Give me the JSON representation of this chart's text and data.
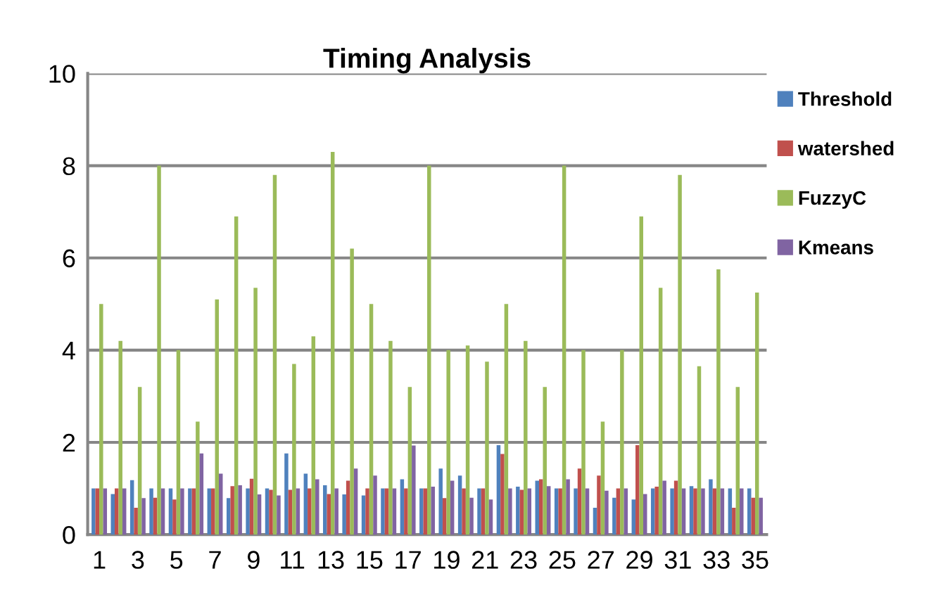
{
  "chart_data": {
    "type": "bar",
    "title": "Timing Analysis",
    "categories": [
      "1",
      null,
      "3",
      null,
      "5",
      null,
      "7",
      null,
      "9",
      null,
      "11",
      null,
      "13",
      null,
      "15",
      null,
      "17",
      null,
      "19",
      null,
      "21",
      null,
      "23",
      null,
      "25",
      null,
      "27",
      null,
      "29",
      null,
      "31",
      null,
      "33",
      null,
      "35"
    ],
    "series": [
      {
        "name": "Threshold",
        "color": "#4f81bd",
        "values": [
          1.0,
          0.88,
          1.18,
          1.0,
          1.0,
          1.0,
          1.0,
          0.79,
          1.0,
          1.0,
          1.76,
          1.32,
          1.07,
          0.87,
          0.85,
          1.0,
          1.2,
          1.0,
          1.43,
          1.28,
          1.0,
          1.94,
          1.04,
          1.17,
          1.0,
          1.0,
          0.58,
          0.8,
          0.76,
          1.0,
          1.0,
          1.05,
          1.2,
          1.0,
          1.0
        ]
      },
      {
        "name": "watershed",
        "color": "#c0504d",
        "values": [
          1.0,
          1.0,
          0.58,
          0.8,
          0.76,
          1.0,
          1.0,
          1.05,
          1.21,
          0.97,
          0.97,
          1.0,
          0.88,
          1.17,
          1.0,
          1.0,
          1.0,
          1.0,
          0.79,
          1.0,
          1.0,
          1.75,
          0.97,
          1.2,
          1.0,
          1.43,
          1.28,
          1.0,
          1.94,
          1.04,
          1.17,
          1.0,
          1.0,
          0.58,
          0.8
        ]
      },
      {
        "name": "FuzzyC",
        "color": "#9bbb59",
        "values": [
          5.0,
          4.2,
          3.2,
          8.0,
          4.0,
          2.45,
          5.1,
          6.9,
          5.35,
          7.8,
          3.7,
          4.3,
          8.3,
          6.2,
          5.0,
          4.2,
          3.2,
          8.0,
          4.0,
          4.1,
          3.75,
          5.0,
          4.2,
          3.2,
          8.0,
          4.0,
          2.45,
          4.0,
          6.9,
          5.35,
          7.8,
          3.65,
          5.75,
          3.2,
          5.25
        ]
      },
      {
        "name": "Kmeans",
        "color": "#8064a2",
        "values": [
          1.0,
          1.0,
          0.79,
          1.0,
          1.0,
          1.76,
          1.32,
          1.07,
          0.87,
          0.85,
          1.0,
          1.2,
          1.0,
          1.43,
          1.28,
          1.0,
          1.93,
          1.04,
          1.17,
          0.8,
          0.76,
          1.0,
          1.0,
          1.05,
          1.2,
          1.0,
          0.95,
          1.0,
          0.88,
          1.17,
          1.0,
          1.0,
          1.0,
          1.0,
          0.8
        ]
      }
    ],
    "ylim": [
      0,
      10
    ],
    "yticks": [
      0,
      2,
      4,
      6,
      8,
      10
    ],
    "grid": "y",
    "legend": "right"
  }
}
